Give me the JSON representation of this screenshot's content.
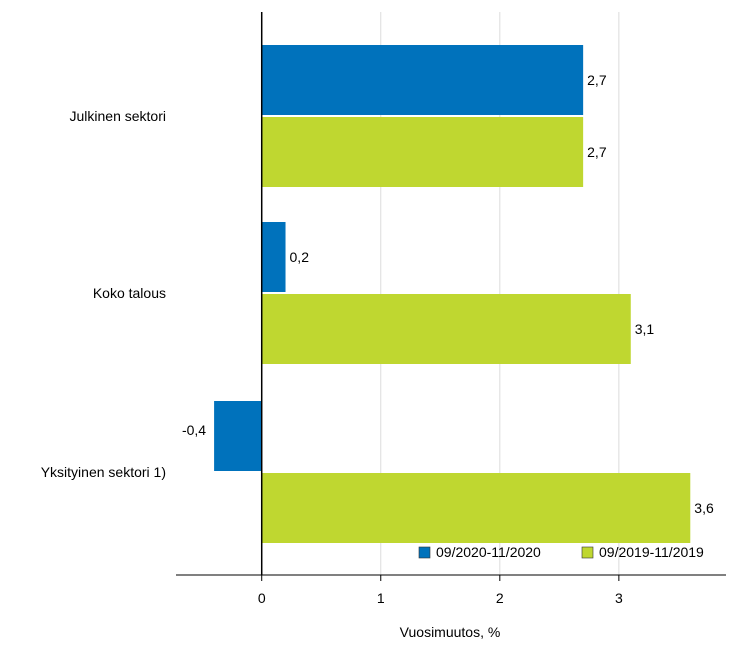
{
  "chart_data": {
    "type": "bar",
    "orientation": "horizontal",
    "categories": [
      "Julkinen sektori",
      "Koko talous",
      "Yksityinen sektori 1)"
    ],
    "series": [
      {
        "name": "09/2020-11/2020",
        "color": "#0072bc",
        "values": [
          2.7,
          0.2,
          -0.4
        ]
      },
      {
        "name": "09/2019-11/2019",
        "color": "#bfd730",
        "values": [
          2.7,
          3.1,
          3.6
        ]
      }
    ],
    "value_labels": [
      [
        "2,7",
        "0,2",
        "-0,4"
      ],
      [
        "2,7",
        "3,1",
        "3,6"
      ]
    ],
    "x_ticks": [
      0,
      1,
      2,
      3
    ],
    "x_tick_labels": [
      "0",
      "1",
      "2",
      "3"
    ],
    "xlim": [
      -0.72,
      3.9
    ],
    "xlabel": "Vuosimuutos, %",
    "ylabel": "",
    "title": "",
    "grid": "vertical",
    "legend": "bottom-right"
  }
}
